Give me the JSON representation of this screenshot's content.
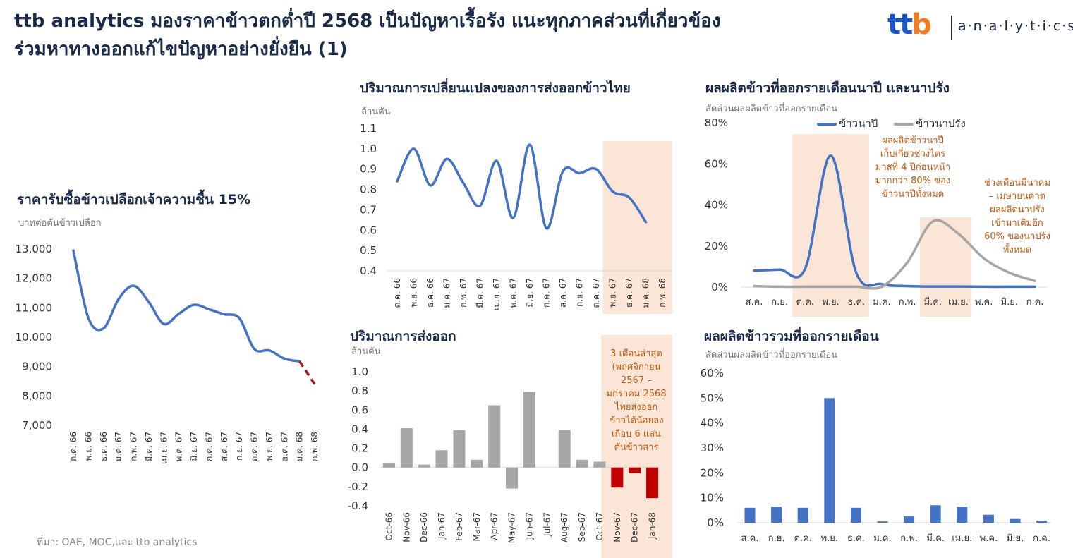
{
  "header": {
    "title_line1": "ttb analytics มองราคาข้าวตกต่ำปี 2568 เป็นปัญหาเรื้อรัง แนะทุกภาคส่วนที่เกี่ยวข้อง",
    "title_line2": "ร่วมหาทางออกแก้ไขปัญหาอย่างยั่งยืน (1)"
  },
  "logo": {
    "word_part1": "tt",
    "word_part2": "b",
    "text": "a·n·a·l·y·t·i·c·s"
  },
  "colors": {
    "blue": "#4472c4",
    "gray": "#a6a6a6",
    "red": "#c00000",
    "dark_red": "#a51c1c",
    "highlight": "#fbe5d6",
    "note": "#c25a10"
  },
  "source": "ที่มา: OAE, MOC,และ ttb  analytics",
  "chart_data": [
    {
      "id": "paddy_price",
      "type": "line",
      "title": "ราคารับซื้อข้าวเปลือกเจ้าความชื้น 15%",
      "subtitle": "บาทต่อตันข้าวเปลือก",
      "categories": [
        "ต.ค. 66",
        "พ.ย. 66",
        "ธ.ค. 66",
        "ม.ค. 67",
        "ก.พ. 67",
        "มี.ค. 67",
        "เม.ย. 67",
        "พ.ค. 67",
        "มิ.ย. 67",
        "ก.ค. 67",
        "ส.ค. 67",
        "ก.ย. 67",
        "ต.ค. 67",
        "พ.ย. 67",
        "ธ.ค. 67",
        "ม.ค. 68",
        "ก.พ. 68"
      ],
      "values": [
        12950,
        10650,
        10300,
        11300,
        11750,
        11200,
        10450,
        10800,
        11100,
        10950,
        10780,
        10650,
        9600,
        9550,
        9270,
        9180,
        8400
      ],
      "forecast_from_index": 15,
      "ylim": [
        7000,
        13000
      ],
      "yticks": [
        "7,000",
        "8,000",
        "9,000",
        "10,000",
        "11,000",
        "12,000",
        "13,000"
      ],
      "ytick_values": [
        7000,
        8000,
        9000,
        10000,
        11000,
        12000,
        13000
      ]
    },
    {
      "id": "export_change",
      "type": "line",
      "title": "ปริมาณการเปลี่ยนแปลงของการส่งออกข้าวไทย",
      "subtitle": "ล้านตัน",
      "categories": [
        "ต.ค. 66",
        "พ.ย. 66",
        "ธ.ค. 66",
        "ม.ค. 67",
        "ก.พ. 67",
        "มี.ค. 67",
        "เม.ย. 67",
        "พ.ค. 67",
        "มิ.ย. 67",
        "ก.ค. 67",
        "ส.ค. 67",
        "ก.ย. 67",
        "ต.ค. 67",
        "พ.ย. 67",
        "ธ.ค. 67",
        "ม.ค. 68",
        "ก.พ. 68"
      ],
      "values": [
        0.84,
        1.0,
        0.82,
        0.95,
        0.83,
        0.72,
        0.94,
        0.66,
        1.02,
        0.61,
        0.89,
        0.88,
        0.9,
        0.79,
        0.76,
        0.64,
        null
      ],
      "ylim": [
        0.4,
        1.1
      ],
      "yticks": [
        "0.4",
        "0.5",
        "0.6",
        "0.7",
        "0.8",
        "0.9",
        "1.0",
        "1.1"
      ],
      "ytick_values": [
        0.4,
        0.5,
        0.6,
        0.7,
        0.8,
        0.9,
        1.0,
        1.1
      ],
      "highlight_range": [
        13,
        16
      ]
    },
    {
      "id": "export_volume",
      "type": "bar",
      "title": "ปริมาณการส่งออก",
      "subtitle": "ล้านตัน",
      "categories": [
        "Oct-66",
        "Nov-66",
        "Dec-66",
        "Jan-67",
        "Feb-67",
        "Mar-67",
        "Apr-67",
        "May-67",
        "Jun-67",
        "Jul-67",
        "Aug-67",
        "Sep-67",
        "Oct-67",
        "Nov-67",
        "Dec-67",
        "Jan-68"
      ],
      "values": [
        0.05,
        0.41,
        0.03,
        0.18,
        0.39,
        0.08,
        0.65,
        -0.22,
        0.79,
        0.0,
        0.39,
        0.08,
        0.06,
        -0.21,
        -0.06,
        -0.32
      ],
      "ylim": [
        -0.4,
        1.0
      ],
      "yticks": [
        "-0.4",
        "-0.2",
        "0.0",
        "0.2",
        "0.4",
        "0.6",
        "0.8",
        "1.0"
      ],
      "ytick_values": [
        -0.4,
        -0.2,
        0.0,
        0.2,
        0.4,
        0.6,
        0.8,
        1.0
      ],
      "highlight_from_index": 13,
      "note": "3 เดือนล่าสุด\n(พฤศจิกายน\n2567 –\nมกราคม 2568\nไทยส่งออก\nข้าวได้น้อยลง\nเกือบ 6 แสน\nตันข้าวสาร"
    },
    {
      "id": "monthly_output_by_crop",
      "type": "line",
      "title": "ผลผลิตข้าวที่ออกรายเดือนนาปี และนาปรัง",
      "subtitle": "สัดส่วนผลผลิตข้าวที่ออกรายเดือน",
      "categories": [
        "ส.ค.",
        "ก.ย.",
        "ต.ค.",
        "พ.ย.",
        "ธ.ค.",
        "ม.ค.",
        "ก.พ.",
        "มี.ค.",
        "เม.ย.",
        "พ.ค.",
        "มิ.ย.",
        "ก.ค."
      ],
      "series": [
        {
          "name": "ข้าวนาปี",
          "values": [
            8,
            8.5,
            9,
            64,
            7,
            1.5,
            0.5,
            0.3,
            0.3,
            0.2,
            0.2,
            0.2
          ]
        },
        {
          "name": "ข้าวนาปรัง",
          "values": [
            0.5,
            0.2,
            0.2,
            0.2,
            0.2,
            0.2,
            12,
            32,
            26,
            14,
            7,
            3
          ]
        }
      ],
      "ylim": [
        0,
        80
      ],
      "yticks": [
        "0%",
        "20%",
        "40%",
        "60%",
        "80%"
      ],
      "ytick_values": [
        0,
        20,
        40,
        60,
        80
      ],
      "highlight_ranges": [
        [
          2,
          4
        ],
        [
          7,
          8
        ]
      ],
      "note1": "ผลผลิตข้าวนาปี\nเก็บเกี่ยวช่วงไตร\nมาสที่ 4 ปีก่อนหน้า\nมากกว่า 80% ของ\nข้าวนาปีทั้งหมด",
      "note2": "ช่วงเดือนมีนาคม\n– เมษายนคาด\nผลผลิตนาปรัง\nเข้ามาเติมอีก\n60% ของนาปรัง\nทั้งหมด"
    },
    {
      "id": "monthly_output_total",
      "type": "bar",
      "title": "ผลผลิตข้าวรวมที่ออกรายเดือน",
      "subtitle": "สัดส่วนผลผลิตข้าวที่ออกรายเดือน",
      "categories": [
        "ส.ค.",
        "ก.ย.",
        "ต.ค.",
        "พ.ย.",
        "ธ.ค.",
        "ม.ค.",
        "ก.พ.",
        "มี.ค.",
        "เม.ย.",
        "พ.ค.",
        "มิ.ย.",
        "ก.ค."
      ],
      "values": [
        6,
        6.5,
        6,
        50,
        6,
        0.5,
        2.5,
        7,
        6.5,
        3.2,
        1.5,
        0.8
      ],
      "ylim": [
        0,
        60
      ],
      "yticks": [
        "0%",
        "10%",
        "20%",
        "30%",
        "40%",
        "50%",
        "60%"
      ],
      "ytick_values": [
        0,
        10,
        20,
        30,
        40,
        50,
        60
      ]
    }
  ]
}
